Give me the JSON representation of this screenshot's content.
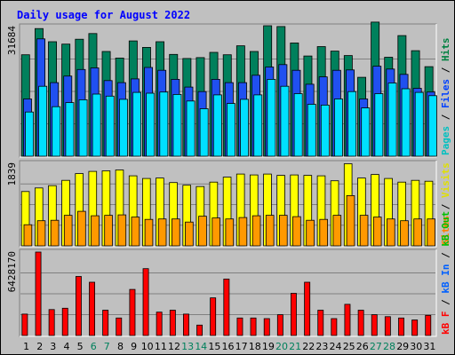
{
  "chart_data": {
    "type": "bar",
    "title": "Daily usage for August 2022",
    "x_labels": [
      "1",
      "2",
      "3",
      "4",
      "5",
      "6",
      "7",
      "8",
      "9",
      "10",
      "11",
      "12",
      "13",
      "14",
      "15",
      "16",
      "17",
      "18",
      "19",
      "20",
      "21",
      "22",
      "23",
      "24",
      "25",
      "26",
      "27",
      "28",
      "29",
      "30",
      "31"
    ],
    "weekend_days": [
      "6",
      "7",
      "13",
      "14",
      "20",
      "21",
      "27",
      "28"
    ],
    "weekday_color": "#000000",
    "weekend_color": "#00805c",
    "panels": [
      {
        "name": "hits-files-pages",
        "max_label": "31684",
        "max": 31684,
        "legend": [
          {
            "text": "Pages",
            "color": "#00c0c0"
          },
          {
            "text": " / ",
            "color": "#000000"
          },
          {
            "text": "Files",
            "color": "#0040ff"
          },
          {
            "text": " / ",
            "color": "#000000"
          },
          {
            "text": "Hits",
            "color": "#008040"
          }
        ],
        "series": [
          {
            "name": "Hits",
            "color": "#00805c",
            "values": [
              24800,
              31200,
              28000,
              27400,
              28600,
              30000,
              25600,
              24000,
              28200,
              26600,
              28000,
              24900,
              23900,
              24100,
              25400,
              24800,
              27000,
              25600,
              31900,
              31700,
              27700,
              24500,
              26800,
              25700,
              24600,
              19300,
              32800,
              24200,
              29500,
              25800,
              21900
            ]
          },
          {
            "name": "Files",
            "color": "#2050f0",
            "values": [
              14000,
              28700,
              18000,
              19600,
              21200,
              21600,
              18500,
              18000,
              18900,
              21700,
              21000,
              18800,
              16900,
              15800,
              18800,
              18000,
              18000,
              19800,
              21800,
              22400,
              21000,
              17600,
              19400,
              21000,
              21100,
              14000,
              22000,
              21300,
              20000,
              16600,
              15700
            ]
          },
          {
            "name": "Pages",
            "color": "#00e0ff",
            "values": [
              10800,
              17100,
              12100,
              13100,
              13800,
              15200,
              14700,
              13900,
              15600,
              15400,
              15700,
              15100,
              13500,
              11600,
              15000,
              12900,
              13900,
              15000,
              18800,
              17100,
              15300,
              12700,
              12500,
              14000,
              15800,
              11800,
              15300,
              17900,
              16500,
              15600,
              14800
            ]
          }
        ]
      },
      {
        "name": "visits-sites",
        "max_label": "1839",
        "max": 1839,
        "legend": [
          {
            "text": "Sites",
            "color": "#ff8000"
          },
          {
            "text": " / ",
            "color": "#000000"
          },
          {
            "text": "Visits",
            "color": "#e0e000"
          }
        ],
        "series": [
          {
            "name": "Visits",
            "color": "#ffff00",
            "values": [
              1210,
              1290,
              1340,
              1460,
              1610,
              1660,
              1670,
              1690,
              1560,
              1500,
              1510,
              1410,
              1350,
              1320,
              1420,
              1530,
              1600,
              1580,
              1600,
              1570,
              1580,
              1570,
              1560,
              1450,
              1830,
              1510,
              1590,
              1500,
              1420,
              1460,
              1440
            ]
          },
          {
            "name": "Sites",
            "color": "#ff9900",
            "values": [
              470,
              560,
              570,
              680,
              770,
              670,
              680,
              690,
              640,
              590,
              600,
              600,
              530,
              660,
              620,
              600,
              630,
              670,
              680,
              680,
              650,
              570,
              590,
              680,
              1120,
              680,
              640,
              600,
              560,
              600,
              600
            ]
          }
        ]
      },
      {
        "name": "kbytes",
        "max_label": "6428170",
        "max": 6428170,
        "legend": [
          {
            "text": "kB F",
            "color": "#ff0000"
          },
          {
            "text": " / ",
            "color": "#000000"
          },
          {
            "text": "kB In",
            "color": "#0060ff"
          },
          {
            "text": " / ",
            "color": "#000000"
          },
          {
            "text": "kB Out",
            "color": "#00c000"
          }
        ],
        "series": [
          {
            "name": "kB F",
            "color": "#ff0000",
            "values": [
              1650000,
              6428170,
              2000000,
              2100000,
              4550000,
              4100000,
              1950000,
              1350000,
              3550000,
              5150000,
              1800000,
              1950000,
              1650000,
              800000,
              2900000,
              4350000,
              1350000,
              1350000,
              1300000,
              1600000,
              3250000,
              4100000,
              1950000,
              1300000,
              2400000,
              1950000,
              1600000,
              1450000,
              1350000,
              1200000,
              1550000
            ]
          }
        ]
      }
    ]
  }
}
